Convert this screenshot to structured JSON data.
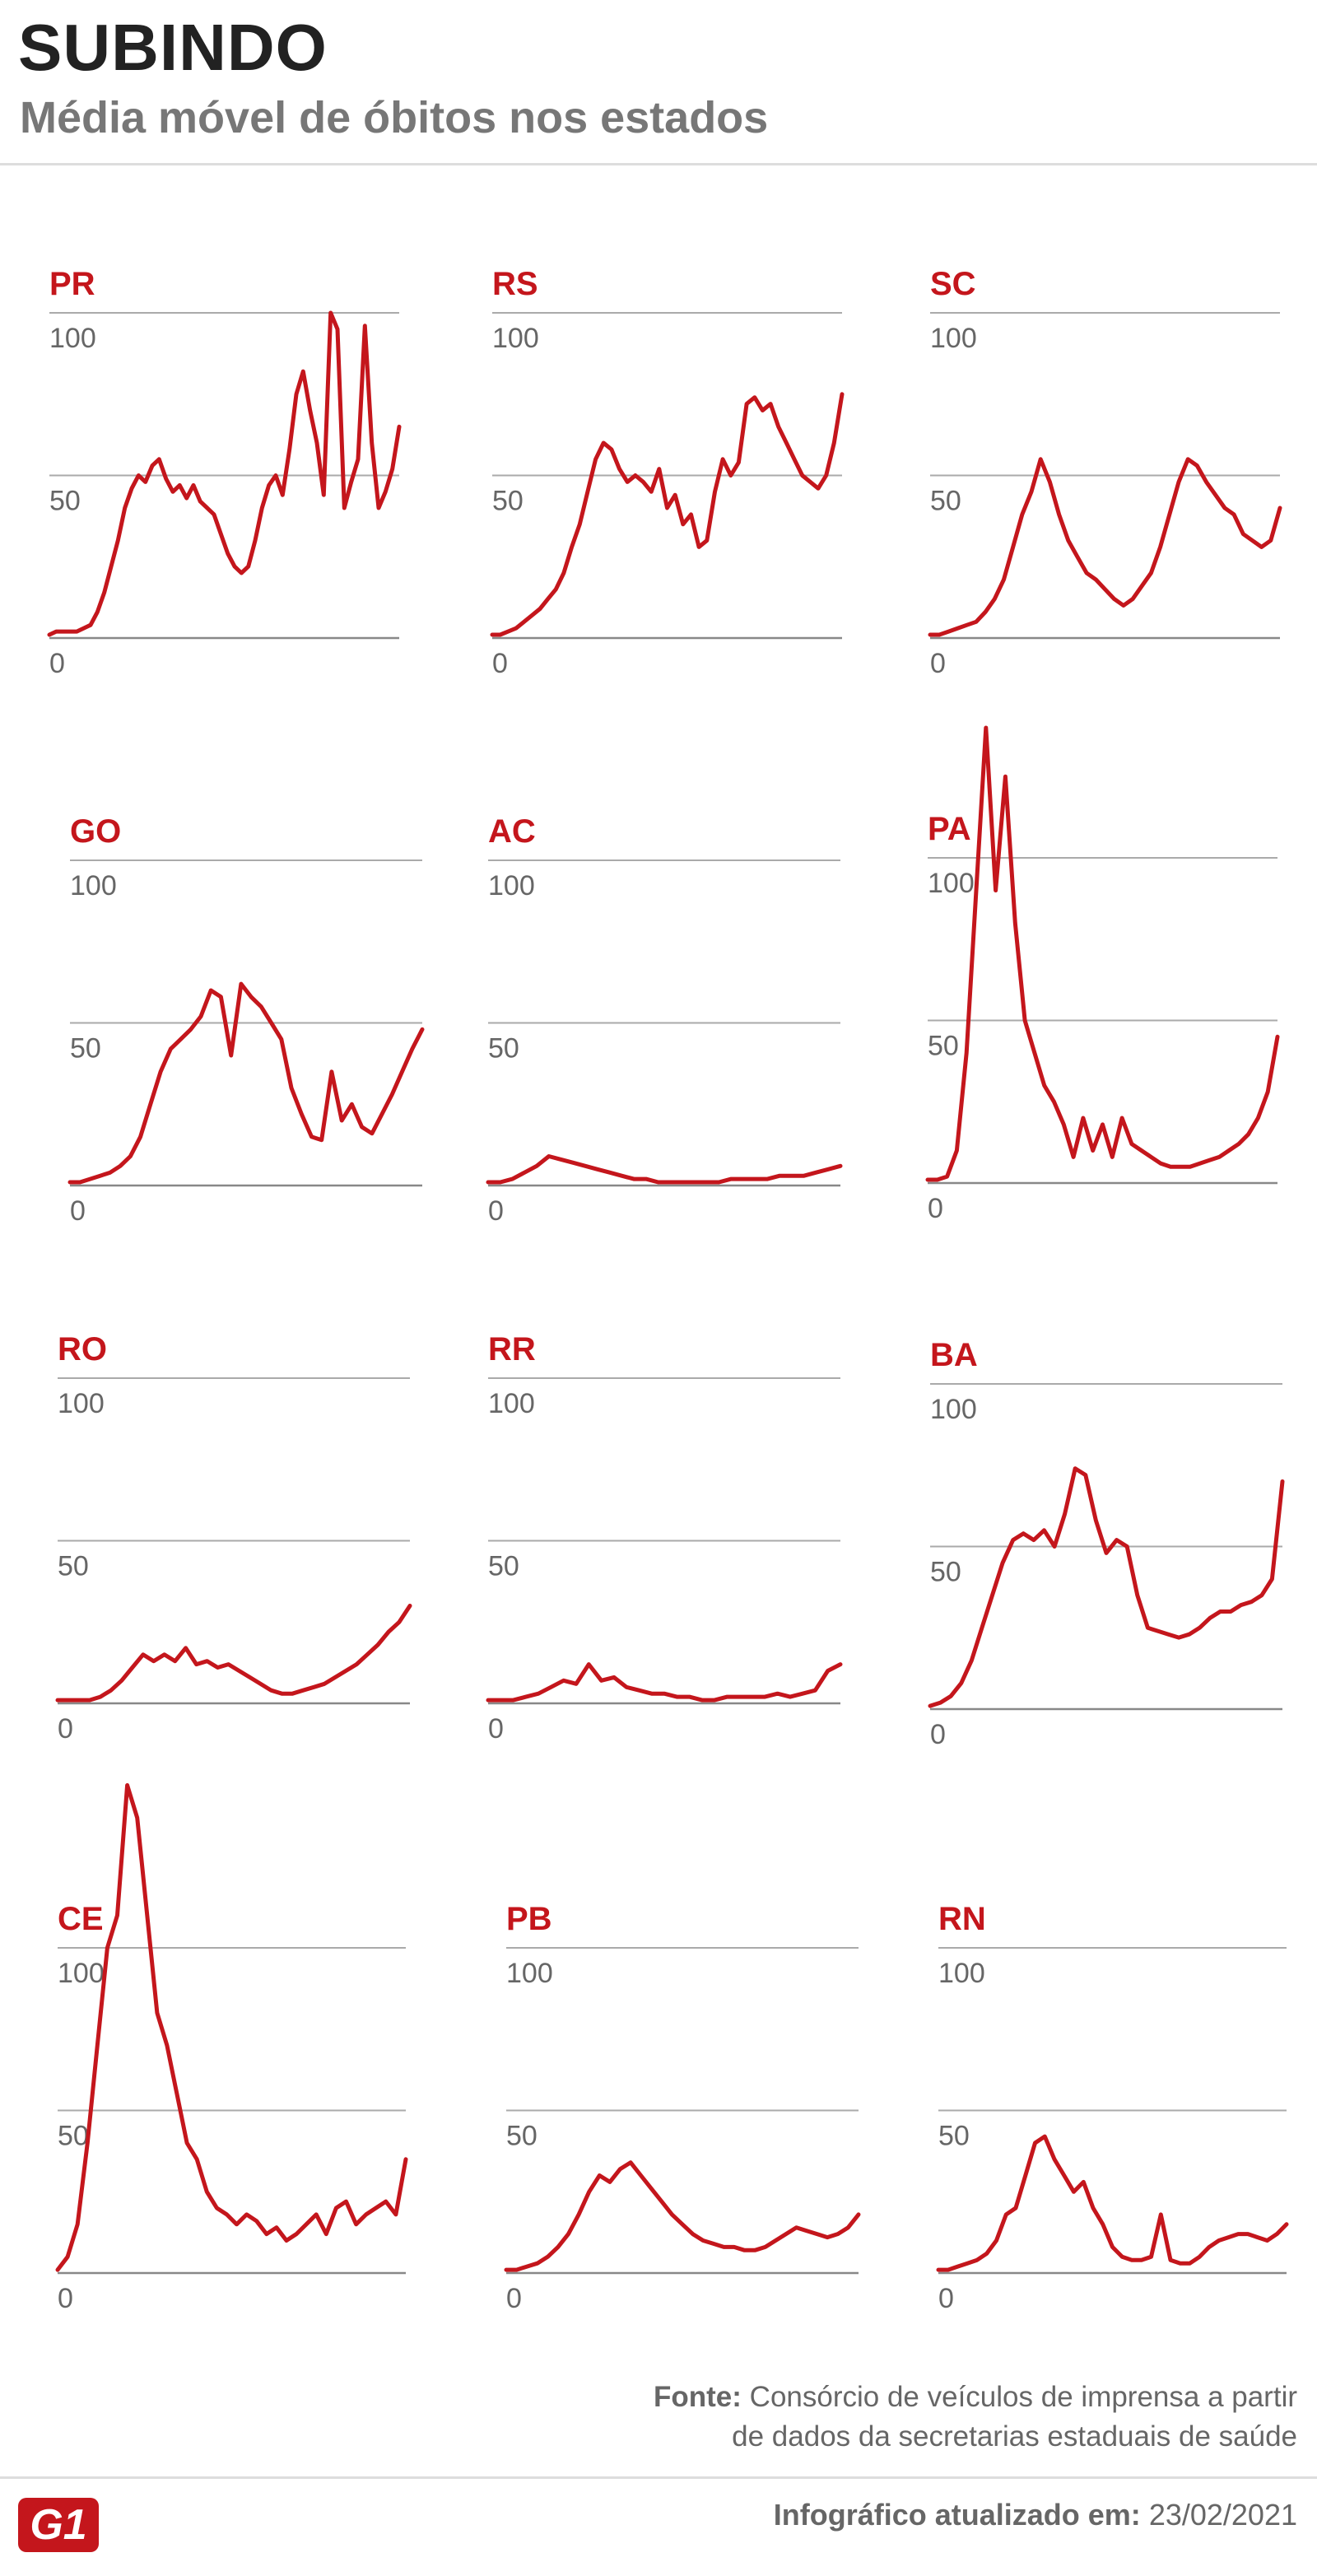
{
  "header": {
    "title": "SUBINDO",
    "subtitle": "Média móvel de óbitos nos estados"
  },
  "colors": {
    "series": "#c4161c",
    "label": "#c4161c",
    "grid": "#aaaaaa",
    "text": "#666666"
  },
  "chart_data": [
    {
      "type": "line",
      "label": "PR",
      "ylim": [
        0,
        100
      ],
      "yticks": [
        0,
        50,
        100
      ],
      "values": [
        1,
        2,
        2,
        2,
        2,
        3,
        4,
        8,
        14,
        22,
        30,
        40,
        46,
        50,
        48,
        53,
        55,
        49,
        45,
        47,
        43,
        47,
        42,
        40,
        38,
        32,
        26,
        22,
        20,
        22,
        30,
        40,
        47,
        50,
        44,
        58,
        75,
        82,
        70,
        60,
        44,
        100,
        95,
        40,
        48,
        55,
        96,
        60,
        40,
        45,
        52,
        65
      ]
    },
    {
      "type": "line",
      "label": "RS",
      "ylim": [
        0,
        100
      ],
      "yticks": [
        0,
        50,
        100
      ],
      "values": [
        1,
        1,
        2,
        3,
        5,
        7,
        9,
        12,
        15,
        20,
        28,
        35,
        45,
        55,
        60,
        58,
        52,
        48,
        50,
        48,
        45,
        52,
        40,
        44,
        35,
        38,
        28,
        30,
        45,
        55,
        50,
        54,
        72,
        74,
        70,
        72,
        65,
        60,
        55,
        50,
        48,
        46,
        50,
        60,
        75
      ]
    },
    {
      "type": "line",
      "label": "SC",
      "ylim": [
        0,
        100
      ],
      "yticks": [
        0,
        50,
        100
      ],
      "values": [
        1,
        1,
        2,
        3,
        4,
        5,
        8,
        12,
        18,
        28,
        38,
        45,
        55,
        48,
        38,
        30,
        25,
        20,
        18,
        15,
        12,
        10,
        12,
        16,
        20,
        28,
        38,
        48,
        55,
        53,
        48,
        44,
        40,
        38,
        32,
        30,
        28,
        30,
        40
      ]
    },
    {
      "type": "line",
      "label": "GO",
      "ylim": [
        0,
        100
      ],
      "yticks": [
        0,
        50,
        100
      ],
      "values": [
        1,
        1,
        2,
        3,
        4,
        6,
        9,
        15,
        25,
        35,
        42,
        45,
        48,
        52,
        60,
        58,
        40,
        62,
        58,
        55,
        50,
        45,
        30,
        22,
        15,
        14,
        35,
        20,
        25,
        18,
        16,
        22,
        28,
        35,
        42,
        48
      ]
    },
    {
      "type": "line",
      "label": "AC",
      "ylim": [
        0,
        100
      ],
      "yticks": [
        0,
        50,
        100
      ],
      "values": [
        1,
        1,
        2,
        4,
        6,
        9,
        8,
        7,
        6,
        5,
        4,
        3,
        2,
        2,
        1,
        1,
        1,
        1,
        1,
        1,
        2,
        2,
        2,
        2,
        3,
        3,
        3,
        4,
        5,
        6
      ]
    },
    {
      "type": "line",
      "label": "PA",
      "ylim": [
        0,
        100
      ],
      "yticks": [
        0,
        50,
        100
      ],
      "values": [
        1,
        1,
        2,
        10,
        40,
        90,
        140,
        90,
        125,
        80,
        50,
        40,
        30,
        25,
        18,
        8,
        20,
        10,
        18,
        8,
        20,
        12,
        10,
        8,
        6,
        5,
        5,
        5,
        6,
        7,
        8,
        10,
        12,
        15,
        20,
        28,
        45
      ]
    },
    {
      "type": "line",
      "label": "RO",
      "ylim": [
        0,
        100
      ],
      "yticks": [
        0,
        50,
        100
      ],
      "values": [
        1,
        1,
        1,
        1,
        2,
        4,
        7,
        11,
        15,
        13,
        15,
        13,
        17,
        12,
        13,
        11,
        12,
        10,
        8,
        6,
        4,
        3,
        3,
        4,
        5,
        6,
        8,
        10,
        12,
        15,
        18,
        22,
        25,
        30
      ]
    },
    {
      "type": "line",
      "label": "RR",
      "ylim": [
        0,
        100
      ],
      "yticks": [
        0,
        50,
        100
      ],
      "values": [
        1,
        1,
        1,
        2,
        3,
        5,
        7,
        6,
        12,
        7,
        8,
        5,
        4,
        3,
        3,
        2,
        2,
        1,
        1,
        2,
        2,
        2,
        2,
        3,
        2,
        3,
        4,
        10,
        12
      ]
    },
    {
      "type": "line",
      "label": "BA",
      "ylim": [
        0,
        100
      ],
      "yticks": [
        0,
        50,
        100
      ],
      "values": [
        1,
        2,
        4,
        8,
        15,
        25,
        35,
        45,
        52,
        54,
        52,
        55,
        50,
        60,
        74,
        72,
        58,
        48,
        52,
        50,
        35,
        25,
        24,
        23,
        22,
        23,
        25,
        28,
        30,
        30,
        32,
        33,
        35,
        40,
        70
      ]
    },
    {
      "type": "line",
      "label": "CE",
      "ylim": [
        0,
        100
      ],
      "yticks": [
        0,
        50,
        100
      ],
      "values": [
        1,
        5,
        15,
        40,
        70,
        100,
        110,
        150,
        140,
        110,
        80,
        70,
        55,
        40,
        35,
        25,
        20,
        18,
        15,
        18,
        16,
        12,
        14,
        10,
        12,
        15,
        18,
        12,
        20,
        22,
        15,
        18,
        20,
        22,
        18,
        35
      ]
    },
    {
      "type": "line",
      "label": "PB",
      "ylim": [
        0,
        100
      ],
      "yticks": [
        0,
        50,
        100
      ],
      "values": [
        1,
        1,
        2,
        3,
        5,
        8,
        12,
        18,
        25,
        30,
        28,
        32,
        34,
        30,
        26,
        22,
        18,
        15,
        12,
        10,
        9,
        8,
        8,
        7,
        7,
        8,
        10,
        12,
        14,
        13,
        12,
        11,
        12,
        14,
        18
      ]
    },
    {
      "type": "line",
      "label": "RN",
      "ylim": [
        0,
        100
      ],
      "yticks": [
        0,
        50,
        100
      ],
      "values": [
        1,
        1,
        2,
        3,
        4,
        6,
        10,
        18,
        20,
        30,
        40,
        42,
        35,
        30,
        25,
        28,
        20,
        15,
        8,
        5,
        4,
        4,
        5,
        18,
        4,
        3,
        3,
        5,
        8,
        10,
        11,
        12,
        12,
        11,
        10,
        12,
        15
      ]
    }
  ],
  "footer": {
    "source_label": "Fonte:",
    "source_line1": "Consórcio de veículos de imprensa a partir",
    "source_line2": "de dados da secretarias estaduais de saúde",
    "logo": "G1",
    "updated_label": "Infográfico atualizado em:",
    "updated_date": "23/02/2021"
  }
}
